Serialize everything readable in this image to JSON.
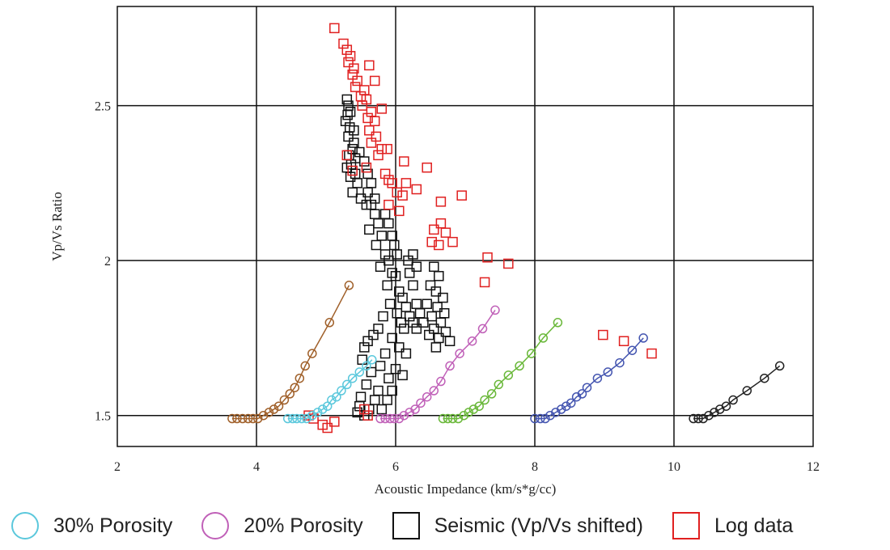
{
  "chart_data": {
    "type": "scatter",
    "xlabel": "Acoustic Impedance (km/s*g/cc)",
    "ylabel": "Vp/Vs Ratio",
    "xlim": [
      2,
      12
    ],
    "ylim": [
      1.4,
      2.82
    ],
    "xticks": [
      "2",
      "4",
      "6",
      "8",
      "10",
      "12"
    ],
    "yticks": [
      "1.5",
      "2",
      "2.5"
    ],
    "grid": true,
    "legend_position": "bottom",
    "series": [
      {
        "name": "30% Porosity",
        "marker": "circle",
        "color": "#5bc8dc",
        "legend": true,
        "line": true,
        "points": [
          [
            4.45,
            1.49
          ],
          [
            4.52,
            1.49
          ],
          [
            4.58,
            1.49
          ],
          [
            4.65,
            1.49
          ],
          [
            4.72,
            1.49
          ],
          [
            4.8,
            1.5
          ],
          [
            4.88,
            1.51
          ],
          [
            4.95,
            1.52
          ],
          [
            5.02,
            1.53
          ],
          [
            5.08,
            1.55
          ],
          [
            5.15,
            1.56
          ],
          [
            5.22,
            1.58
          ],
          [
            5.3,
            1.6
          ],
          [
            5.38,
            1.62
          ],
          [
            5.48,
            1.64
          ],
          [
            5.58,
            1.66
          ],
          [
            5.66,
            1.68
          ]
        ]
      },
      {
        "name": "20% Porosity",
        "marker": "circle",
        "color": "#c060b8",
        "legend": true,
        "line": true,
        "points": [
          [
            5.78,
            1.49
          ],
          [
            5.85,
            1.49
          ],
          [
            5.92,
            1.49
          ],
          [
            5.98,
            1.49
          ],
          [
            6.05,
            1.49
          ],
          [
            6.12,
            1.5
          ],
          [
            6.2,
            1.51
          ],
          [
            6.28,
            1.52
          ],
          [
            6.36,
            1.54
          ],
          [
            6.45,
            1.56
          ],
          [
            6.55,
            1.58
          ],
          [
            6.65,
            1.61
          ],
          [
            6.78,
            1.66
          ],
          [
            6.92,
            1.7
          ],
          [
            7.1,
            1.74
          ],
          [
            7.25,
            1.78
          ],
          [
            7.43,
            1.84
          ]
        ]
      },
      {
        "name": "",
        "marker": "circle",
        "color": "#a0602a",
        "legend": false,
        "line": true,
        "points": [
          [
            3.65,
            1.49
          ],
          [
            3.72,
            1.49
          ],
          [
            3.8,
            1.49
          ],
          [
            3.88,
            1.49
          ],
          [
            3.95,
            1.49
          ],
          [
            4.02,
            1.49
          ],
          [
            4.1,
            1.5
          ],
          [
            4.18,
            1.51
          ],
          [
            4.25,
            1.52
          ],
          [
            4.32,
            1.53
          ],
          [
            4.4,
            1.55
          ],
          [
            4.48,
            1.57
          ],
          [
            4.55,
            1.59
          ],
          [
            4.62,
            1.62
          ],
          [
            4.7,
            1.66
          ],
          [
            4.8,
            1.7
          ],
          [
            5.05,
            1.8
          ],
          [
            5.33,
            1.92
          ]
        ]
      },
      {
        "name": "",
        "marker": "circle",
        "color": "#6ab83a",
        "legend": false,
        "line": true,
        "points": [
          [
            6.68,
            1.49
          ],
          [
            6.75,
            1.49
          ],
          [
            6.82,
            1.49
          ],
          [
            6.9,
            1.49
          ],
          [
            6.98,
            1.5
          ],
          [
            7.05,
            1.51
          ],
          [
            7.12,
            1.52
          ],
          [
            7.2,
            1.53
          ],
          [
            7.28,
            1.55
          ],
          [
            7.38,
            1.57
          ],
          [
            7.48,
            1.6
          ],
          [
            7.62,
            1.63
          ],
          [
            7.78,
            1.66
          ],
          [
            7.95,
            1.7
          ],
          [
            8.12,
            1.75
          ],
          [
            8.33,
            1.8
          ]
        ]
      },
      {
        "name": "",
        "marker": "circle",
        "color": "#4455b0",
        "legend": false,
        "line": true,
        "points": [
          [
            8.0,
            1.49
          ],
          [
            8.08,
            1.49
          ],
          [
            8.15,
            1.49
          ],
          [
            8.22,
            1.5
          ],
          [
            8.3,
            1.51
          ],
          [
            8.38,
            1.52
          ],
          [
            8.45,
            1.53
          ],
          [
            8.52,
            1.54
          ],
          [
            8.6,
            1.56
          ],
          [
            8.68,
            1.57
          ],
          [
            8.75,
            1.59
          ],
          [
            8.9,
            1.62
          ],
          [
            9.05,
            1.64
          ],
          [
            9.22,
            1.67
          ],
          [
            9.4,
            1.71
          ],
          [
            9.56,
            1.75
          ]
        ]
      },
      {
        "name": "",
        "marker": "circle",
        "color": "#222222",
        "legend": false,
        "line": true,
        "points": [
          [
            10.28,
            1.49
          ],
          [
            10.35,
            1.49
          ],
          [
            10.42,
            1.49
          ],
          [
            10.5,
            1.5
          ],
          [
            10.58,
            1.51
          ],
          [
            10.66,
            1.52
          ],
          [
            10.75,
            1.53
          ],
          [
            10.85,
            1.55
          ],
          [
            11.05,
            1.58
          ],
          [
            11.3,
            1.62
          ],
          [
            11.52,
            1.66
          ]
        ]
      },
      {
        "name": "Seismic (Vp/Vs shifted)",
        "marker": "square",
        "color": "#111111",
        "legend": true,
        "line": false,
        "points": [
          [
            5.3,
            2.52
          ],
          [
            5.35,
            2.48
          ],
          [
            5.28,
            2.45
          ],
          [
            5.4,
            2.42
          ],
          [
            5.32,
            2.4
          ],
          [
            5.38,
            2.36
          ],
          [
            5.42,
            2.33
          ],
          [
            5.3,
            2.3
          ],
          [
            5.35,
            2.27
          ],
          [
            5.45,
            2.25
          ],
          [
            5.38,
            2.22
          ],
          [
            5.5,
            2.2
          ],
          [
            5.55,
            2.32
          ],
          [
            5.48,
            2.35
          ],
          [
            5.6,
            2.28
          ],
          [
            5.65,
            2.25
          ],
          [
            5.58,
            2.18
          ],
          [
            5.7,
            2.15
          ],
          [
            5.75,
            2.12
          ],
          [
            5.62,
            2.1
          ],
          [
            5.8,
            2.08
          ],
          [
            5.72,
            2.05
          ],
          [
            5.85,
            2.02
          ],
          [
            5.9,
            2.0
          ],
          [
            5.78,
            1.98
          ],
          [
            5.95,
            1.96
          ],
          [
            6.0,
            1.95
          ],
          [
            5.88,
            1.92
          ],
          [
            6.05,
            1.9
          ],
          [
            6.1,
            1.88
          ],
          [
            5.92,
            1.86
          ],
          [
            6.15,
            1.85
          ],
          [
            6.02,
            1.83
          ],
          [
            5.82,
            1.82
          ],
          [
            6.2,
            1.82
          ],
          [
            6.08,
            1.8
          ],
          [
            5.75,
            1.78
          ],
          [
            6.25,
            1.8
          ],
          [
            6.12,
            1.78
          ],
          [
            5.68,
            1.76
          ],
          [
            6.3,
            1.78
          ],
          [
            5.95,
            1.75
          ],
          [
            5.6,
            1.74
          ],
          [
            6.05,
            1.72
          ],
          [
            5.55,
            1.72
          ],
          [
            5.85,
            1.7
          ],
          [
            6.15,
            1.7
          ],
          [
            5.52,
            1.68
          ],
          [
            5.78,
            1.66
          ],
          [
            6.0,
            1.65
          ],
          [
            5.65,
            1.64
          ],
          [
            5.9,
            1.62
          ],
          [
            6.1,
            1.63
          ],
          [
            5.58,
            1.6
          ],
          [
            5.75,
            1.58
          ],
          [
            5.95,
            1.58
          ],
          [
            5.5,
            1.56
          ],
          [
            5.7,
            1.55
          ],
          [
            5.88,
            1.55
          ],
          [
            5.48,
            1.53
          ],
          [
            5.62,
            1.52
          ],
          [
            5.8,
            1.52
          ],
          [
            5.45,
            1.51
          ],
          [
            5.55,
            1.5
          ],
          [
            6.55,
            1.98
          ],
          [
            6.62,
            1.95
          ],
          [
            6.5,
            1.92
          ],
          [
            6.58,
            1.9
          ],
          [
            6.68,
            1.88
          ],
          [
            6.45,
            1.86
          ],
          [
            6.6,
            1.85
          ],
          [
            6.7,
            1.83
          ],
          [
            6.52,
            1.82
          ],
          [
            6.65,
            1.8
          ],
          [
            6.4,
            1.8
          ],
          [
            6.55,
            1.78
          ],
          [
            6.72,
            1.77
          ],
          [
            6.48,
            1.76
          ],
          [
            6.62,
            1.75
          ],
          [
            6.78,
            1.74
          ],
          [
            6.58,
            1.72
          ],
          [
            6.35,
            1.83
          ],
          [
            6.3,
            1.86
          ],
          [
            6.25,
            1.92
          ],
          [
            6.2,
            1.96
          ],
          [
            6.18,
            2.0
          ],
          [
            6.25,
            2.02
          ],
          [
            6.3,
            1.98
          ],
          [
            5.85,
            2.15
          ],
          [
            5.9,
            2.12
          ],
          [
            5.95,
            2.08
          ],
          [
            5.98,
            2.05
          ],
          [
            6.02,
            2.02
          ],
          [
            5.7,
            2.2
          ],
          [
            5.65,
            2.18
          ],
          [
            5.6,
            2.22
          ],
          [
            5.42,
            2.28
          ],
          [
            5.36,
            2.31
          ],
          [
            5.33,
            2.34
          ],
          [
            5.4,
            2.38
          ],
          [
            5.34,
            2.43
          ],
          [
            5.31,
            2.47
          ],
          [
            5.32,
            2.5
          ]
        ]
      },
      {
        "name": "Log data",
        "marker": "square",
        "color": "#e02020",
        "legend": true,
        "line": false,
        "points": [
          [
            5.12,
            2.75
          ],
          [
            5.25,
            2.7
          ],
          [
            5.3,
            2.68
          ],
          [
            5.35,
            2.66
          ],
          [
            5.32,
            2.64
          ],
          [
            5.4,
            2.62
          ],
          [
            5.38,
            2.6
          ],
          [
            5.45,
            2.58
          ],
          [
            5.42,
            2.56
          ],
          [
            5.55,
            2.55
          ],
          [
            5.5,
            2.53
          ],
          [
            5.58,
            2.52
          ],
          [
            5.52,
            2.5
          ],
          [
            5.65,
            2.48
          ],
          [
            5.6,
            2.46
          ],
          [
            5.7,
            2.45
          ],
          [
            5.62,
            2.42
          ],
          [
            5.72,
            2.4
          ],
          [
            5.65,
            2.38
          ],
          [
            5.8,
            2.36
          ],
          [
            5.75,
            2.34
          ],
          [
            5.62,
            2.63
          ],
          [
            5.7,
            2.58
          ],
          [
            5.8,
            2.49
          ],
          [
            5.88,
            2.36
          ],
          [
            6.12,
            2.32
          ],
          [
            6.45,
            2.3
          ],
          [
            5.58,
            2.3
          ],
          [
            5.85,
            2.28
          ],
          [
            5.9,
            2.26
          ],
          [
            5.95,
            2.25
          ],
          [
            6.15,
            2.25
          ],
          [
            6.3,
            2.23
          ],
          [
            6.02,
            2.22
          ],
          [
            6.1,
            2.21
          ],
          [
            6.65,
            2.19
          ],
          [
            6.95,
            2.21
          ],
          [
            5.9,
            2.18
          ],
          [
            6.05,
            2.16
          ],
          [
            6.55,
            2.1
          ],
          [
            6.65,
            2.12
          ],
          [
            6.72,
            2.09
          ],
          [
            6.52,
            2.06
          ],
          [
            6.62,
            2.05
          ],
          [
            6.82,
            2.06
          ],
          [
            7.32,
            2.01
          ],
          [
            7.62,
            1.99
          ],
          [
            7.28,
            1.93
          ],
          [
            8.98,
            1.76
          ],
          [
            9.28,
            1.74
          ],
          [
            9.68,
            1.7
          ],
          [
            4.75,
            1.5
          ],
          [
            4.82,
            1.49
          ],
          [
            4.95,
            1.47
          ],
          [
            5.02,
            1.46
          ],
          [
            5.12,
            1.48
          ],
          [
            5.55,
            1.52
          ],
          [
            5.6,
            1.5
          ],
          [
            5.3,
            2.34
          ],
          [
            5.38,
            2.29
          ]
        ]
      }
    ]
  }
}
